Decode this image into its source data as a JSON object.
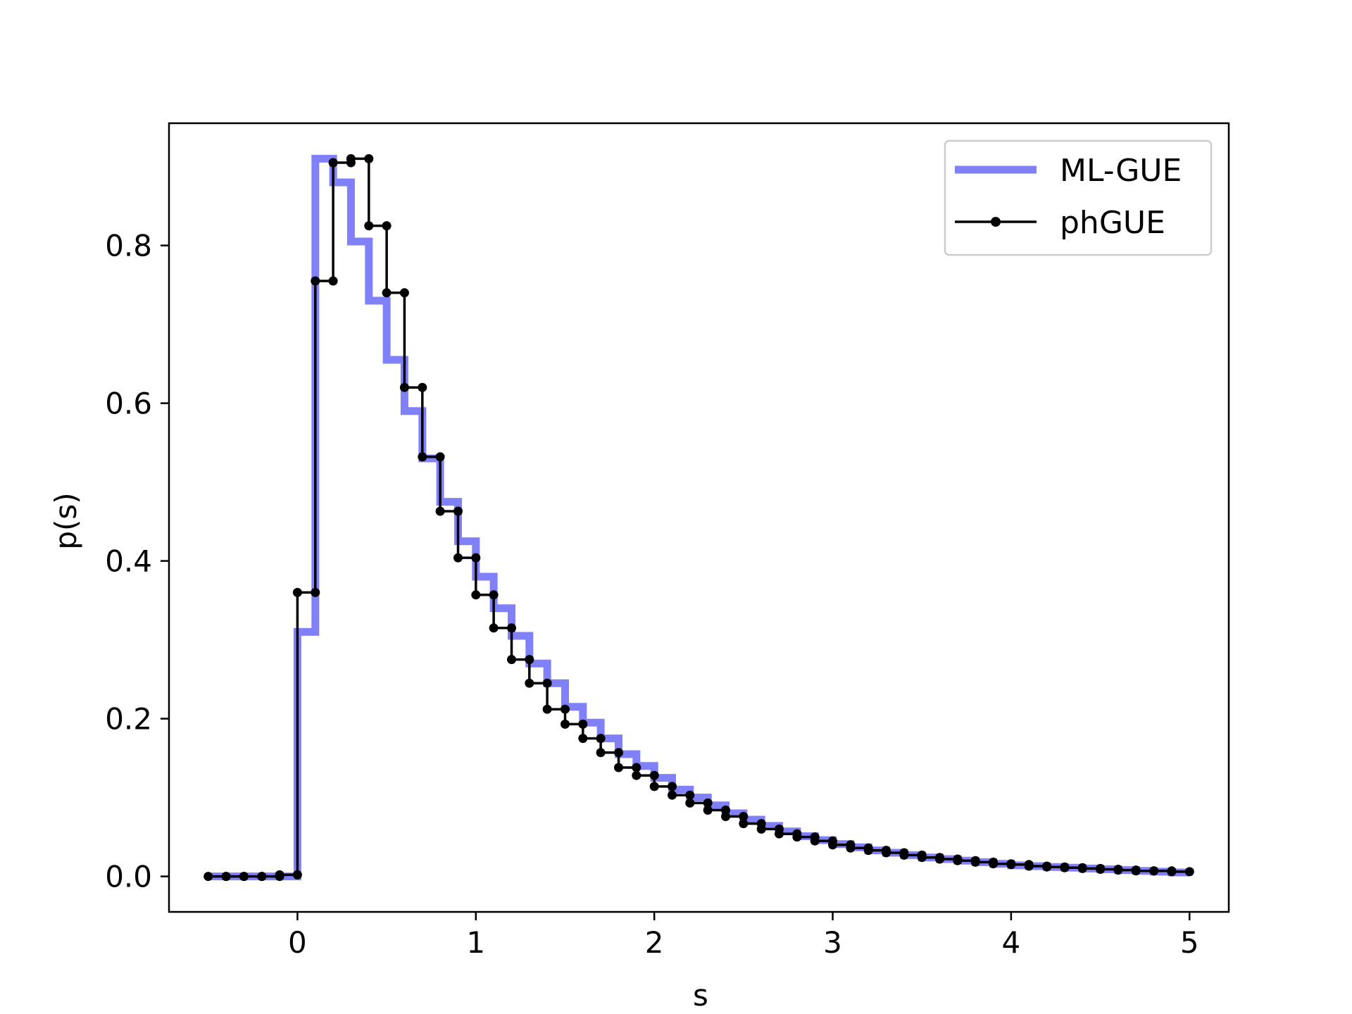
{
  "chart_data": {
    "type": "line",
    "title": "",
    "xlabel": "s",
    "ylabel": "p(s)",
    "xlim": [
      -0.72,
      5.22
    ],
    "ylim": [
      -0.045,
      0.955
    ],
    "xticks": [
      0,
      1,
      2,
      3,
      4,
      5
    ],
    "xtick_labels": [
      "0",
      "1",
      "2",
      "3",
      "4",
      "5"
    ],
    "yticks": [
      0.0,
      0.2,
      0.4,
      0.6,
      0.8
    ],
    "ytick_labels": [
      "0.0",
      "0.2",
      "0.4",
      "0.6",
      "0.8"
    ],
    "grid": false,
    "legend_position": "top-right",
    "bin_width": 0.1,
    "series": [
      {
        "name": "ML-GUE",
        "style": "step",
        "color": "#8080f8",
        "x": [
          -0.45,
          -0.35,
          -0.25,
          -0.15,
          -0.05,
          0.05,
          0.15,
          0.25,
          0.35,
          0.45,
          0.55,
          0.65,
          0.75,
          0.85,
          0.95,
          1.05,
          1.15,
          1.25,
          1.35,
          1.45,
          1.55,
          1.65,
          1.75,
          1.85,
          1.95,
          2.05,
          2.15,
          2.25,
          2.35,
          2.45,
          2.55,
          2.65,
          2.75,
          2.85,
          2.95,
          3.05,
          3.15,
          3.25,
          3.35,
          3.45,
          3.55,
          3.65,
          3.75,
          3.85,
          3.95,
          4.05,
          4.15,
          4.25,
          4.35,
          4.45,
          4.55,
          4.65,
          4.75,
          4.85,
          4.95
        ],
        "y": [
          0,
          0,
          0,
          0,
          0,
          0.31,
          0.91,
          0.88,
          0.805,
          0.73,
          0.655,
          0.59,
          0.53,
          0.475,
          0.425,
          0.38,
          0.34,
          0.305,
          0.27,
          0.245,
          0.215,
          0.195,
          0.175,
          0.155,
          0.14,
          0.125,
          0.11,
          0.1,
          0.09,
          0.08,
          0.072,
          0.064,
          0.057,
          0.051,
          0.046,
          0.041,
          0.037,
          0.033,
          0.03,
          0.027,
          0.024,
          0.022,
          0.02,
          0.018,
          0.016,
          0.014,
          0.013,
          0.012,
          0.011,
          0.01,
          0.009,
          0.008,
          0.007,
          0.006,
          0.005
        ]
      },
      {
        "name": "phGUE",
        "style": "step-markers",
        "color": "#000000",
        "x": [
          -0.45,
          -0.35,
          -0.25,
          -0.15,
          -0.05,
          0.05,
          0.15,
          0.25,
          0.35,
          0.45,
          0.55,
          0.65,
          0.75,
          0.85,
          0.95,
          1.05,
          1.15,
          1.25,
          1.35,
          1.45,
          1.55,
          1.65,
          1.75,
          1.85,
          1.95,
          2.05,
          2.15,
          2.25,
          2.35,
          2.45,
          2.55,
          2.65,
          2.75,
          2.85,
          2.95,
          3.05,
          3.15,
          3.25,
          3.35,
          3.45,
          3.55,
          3.65,
          3.75,
          3.85,
          3.95,
          4.05,
          4.15,
          4.25,
          4.35,
          4.45,
          4.55,
          4.65,
          4.75,
          4.85,
          4.95
        ],
        "y": [
          0,
          0,
          0,
          0,
          0.002,
          0.36,
          0.755,
          0.905,
          0.91,
          0.825,
          0.74,
          0.62,
          0.532,
          0.463,
          0.404,
          0.357,
          0.315,
          0.275,
          0.245,
          0.212,
          0.193,
          0.175,
          0.157,
          0.138,
          0.128,
          0.114,
          0.103,
          0.093,
          0.084,
          0.076,
          0.067,
          0.06,
          0.054,
          0.05,
          0.045,
          0.04,
          0.036,
          0.033,
          0.03,
          0.027,
          0.024,
          0.022,
          0.02,
          0.018,
          0.016,
          0.015,
          0.013,
          0.012,
          0.011,
          0.01,
          0.009,
          0.008,
          0.007,
          0.007,
          0.006
        ]
      }
    ]
  }
}
